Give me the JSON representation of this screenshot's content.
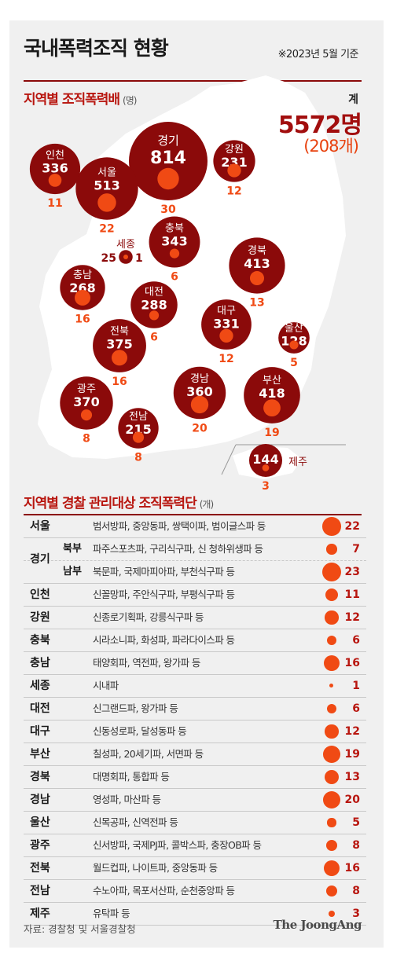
{
  "title": "국내폭력조직 현황",
  "note": "※2023년 5월 기준",
  "section1": {
    "title": "지역별 조직폭력배",
    "unit": "(명)"
  },
  "total": {
    "label": "계",
    "value": "5572명",
    "count": "(208개)"
  },
  "section2": {
    "title": "지역별 경찰 관리대상 조직폭력단",
    "unit": "(개)"
  },
  "source": "자료: 경찰청 및 서울경찰청",
  "logo": "The JoongAng",
  "colors": {
    "bubble": "#8b0a0a",
    "dot": "#f04a14",
    "accent": "#b8160f",
    "map": "#ffffff"
  },
  "chart_data": [
    {
      "type": "bubble-map",
      "unit": "명",
      "regions": [
        {
          "name": "경기",
          "members": 814,
          "groups": 30
        },
        {
          "name": "강원",
          "members": 231,
          "groups": 12
        },
        {
          "name": "인천",
          "members": 336,
          "groups": 11
        },
        {
          "name": "서울",
          "members": 513,
          "groups": 22
        },
        {
          "name": "세종",
          "members": 25,
          "groups": 1
        },
        {
          "name": "충북",
          "members": 343,
          "groups": 6
        },
        {
          "name": "충남",
          "members": 268,
          "groups": 16
        },
        {
          "name": "경북",
          "members": 413,
          "groups": 13
        },
        {
          "name": "대전",
          "members": 288,
          "groups": 6
        },
        {
          "name": "대구",
          "members": 331,
          "groups": 12
        },
        {
          "name": "울산",
          "members": 128,
          "groups": 5
        },
        {
          "name": "전북",
          "members": 375,
          "groups": 16
        },
        {
          "name": "광주",
          "members": 370,
          "groups": 8
        },
        {
          "name": "경남",
          "members": 360,
          "groups": 20
        },
        {
          "name": "부산",
          "members": 418,
          "groups": 19
        },
        {
          "name": "전남",
          "members": 215,
          "groups": 8
        },
        {
          "name": "제주",
          "members": 144,
          "groups": 3
        }
      ]
    },
    {
      "type": "table",
      "unit": "개",
      "rows": [
        {
          "region": "서울",
          "sub": "",
          "gangs": "범서방파, 중앙동파, 쌍택이파, 범이글스파 등",
          "count": 22
        },
        {
          "region": "경기",
          "sub": "북부",
          "gangs": "파주스포츠파, 구리식구파, 신 청하위생파 등",
          "count": 7
        },
        {
          "region": "경기",
          "sub": "남부",
          "gangs": "북문파, 국제마피아파, 부천식구파 등",
          "count": 23
        },
        {
          "region": "인천",
          "sub": "",
          "gangs": "신꼴망파, 주안식구파, 부평식구파 등",
          "count": 11
        },
        {
          "region": "강원",
          "sub": "",
          "gangs": "신종로기획파, 강릉식구파 등",
          "count": 12
        },
        {
          "region": "충북",
          "sub": "",
          "gangs": "시라소니파, 화성파, 파라다이스파 등",
          "count": 6
        },
        {
          "region": "충남",
          "sub": "",
          "gangs": "태양회파, 역전파, 왕가파 등",
          "count": 16
        },
        {
          "region": "세종",
          "sub": "",
          "gangs": "시내파",
          "count": 1
        },
        {
          "region": "대전",
          "sub": "",
          "gangs": "신그랜드파, 왕가파 등",
          "count": 6
        },
        {
          "region": "대구",
          "sub": "",
          "gangs": "신동성로파, 달성동파 등",
          "count": 12
        },
        {
          "region": "부산",
          "sub": "",
          "gangs": "칠성파, 20세기파, 서면파 등",
          "count": 19
        },
        {
          "region": "경북",
          "sub": "",
          "gangs": "대명회파, 통합파 등",
          "count": 13
        },
        {
          "region": "경남",
          "sub": "",
          "gangs": "영성파, 마산파 등",
          "count": 20
        },
        {
          "region": "울산",
          "sub": "",
          "gangs": "신목공파, 신역전파 등",
          "count": 5
        },
        {
          "region": "광주",
          "sub": "",
          "gangs": "신서방파, 국제PJ파, 콜박스파, 충장OB파 등",
          "count": 8
        },
        {
          "region": "전북",
          "sub": "",
          "gangs": "월드컵파, 나이트파, 중앙동파 등",
          "count": 16
        },
        {
          "region": "전남",
          "sub": "",
          "gangs": "수노아파, 목포서산파, 순천중앙파 등",
          "count": 8
        },
        {
          "region": "제주",
          "sub": "",
          "gangs": "유탁파 등",
          "count": 3
        }
      ]
    }
  ]
}
